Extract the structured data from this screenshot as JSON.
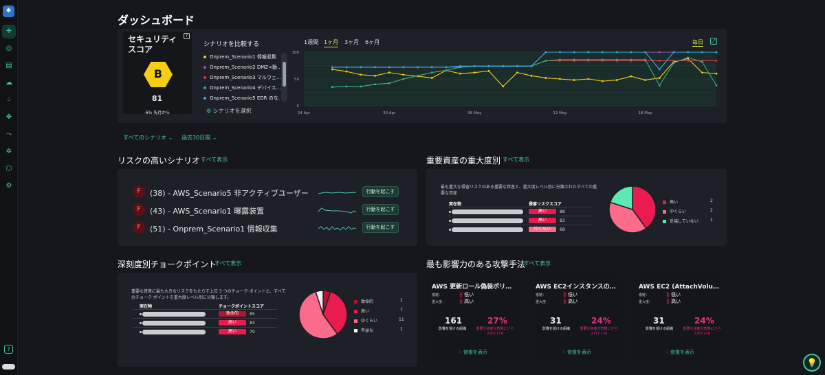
{
  "page_title": "ダッシュボード",
  "score": {
    "title": "セキュリティスコア",
    "grade": "B",
    "value": "81",
    "delta": "-6% 先月から"
  },
  "compare": {
    "title": "シナリオを比較する",
    "select_label": "シナリオを選択",
    "items": [
      {
        "label": "Onprem_Scenario1 情報収集",
        "color": "#f5cd15"
      },
      {
        "label": "Onprem_Scenario2 DMZ<動…",
        "color": "#a24dd6"
      },
      {
        "label": "Onprem_Scenario3 マルウェ…",
        "color": "#e8364f"
      },
      {
        "label": "Onprem_Scenario4 デバイス…",
        "color": "#2fb37d"
      },
      {
        "label": "Onprem_Scenario5 EDR のな…",
        "color": "#36a9f0"
      }
    ]
  },
  "chart_tabs": {
    "week": "1週間",
    "month": "1ヶ月",
    "three": "3ヶ月",
    "six": "6ヶ月",
    "daily": "毎日"
  },
  "chart_data": {
    "type": "line",
    "x": [
      "24 Apr",
      "25 Apr",
      "26 Apr",
      "27 Apr",
      "28 Apr",
      "29 Apr",
      "30 Apr",
      "1 May",
      "2 May",
      "3 May",
      "4 May",
      "5 May",
      "6 May",
      "7 May",
      "8 May",
      "9 May",
      "10 May",
      "11 May",
      "12 May",
      "13 May",
      "14 May",
      "15 May",
      "16 May",
      "17 May",
      "18 May",
      "19 May",
      "20 May",
      "21 May",
      "22 May",
      "23 May"
    ],
    "x_ticks": [
      "24 Apr",
      "30 Apr",
      "06 May",
      "12 May",
      "18 May"
    ],
    "y_ticks": [
      "0",
      "50",
      "100"
    ],
    "ylim": [
      0,
      100
    ],
    "series": [
      {
        "name": "Onprem_Scenario1 情報収集",
        "color": "#f5cd15",
        "values": [
          null,
          null,
          68,
          64,
          58,
          56,
          62,
          58,
          55,
          52,
          66,
          60,
          62,
          65,
          36,
          62,
          56,
          52,
          50,
          48,
          50,
          46,
          48,
          55,
          48,
          52,
          82,
          88,
          62,
          60
        ]
      },
      {
        "name": "Onprem_Scenario2 DMZ<動…",
        "color": "#a24dd6",
        "values": [
          null,
          null,
          72,
          72,
          72,
          72,
          72,
          72,
          72,
          72,
          72,
          72,
          74,
          74,
          74,
          74,
          74,
          100,
          100,
          100,
          100,
          100,
          100,
          100,
          100,
          100,
          100,
          100,
          100,
          100
        ]
      },
      {
        "name": "Onprem_Scenario3 マルウェ…",
        "color": "#e8364f",
        "values": [
          null,
          null,
          35,
          36,
          36,
          40,
          42,
          50,
          56,
          62,
          66,
          72,
          74,
          74,
          74,
          74,
          74,
          84,
          84,
          84,
          84,
          84,
          84,
          84,
          84,
          84,
          84,
          84,
          84,
          84
        ]
      },
      {
        "name": "Onprem_Scenario4 デバイス…",
        "color": "#2fb37d",
        "values": [
          null,
          null,
          35,
          36,
          36,
          40,
          42,
          50,
          56,
          62,
          66,
          72,
          74,
          74,
          74,
          74,
          74,
          84,
          86,
          86,
          86,
          86,
          86,
          86,
          86,
          38,
          80,
          90,
          82,
          38
        ]
      },
      {
        "name": "Onprem_Scenario5 EDR のな…",
        "color": "#36a9f0",
        "values": [
          null,
          null,
          72,
          72,
          72,
          72,
          72,
          72,
          72,
          72,
          72,
          74,
          74,
          74,
          74,
          74,
          74,
          100,
          100,
          100,
          100,
          100,
          100,
          100,
          100,
          68,
          100,
          100,
          100,
          100
        ]
      }
    ]
  },
  "filters": {
    "scenario": "すべてのシナリオ",
    "period": "過去30日間"
  },
  "risk": {
    "title": "リスクの高いシナリオ",
    "show_all": "すべて表示",
    "rows": [
      {
        "badge": "F",
        "text": "(38) - AWS_Scenario5 非アクティブユーザー",
        "action": "行動を起こす"
      },
      {
        "badge": "F",
        "text": "(43) - AWS_Scenario1 曝露装置",
        "action": "行動を起こす"
      },
      {
        "badge": "F",
        "text": "(51) - Onprem_Scenario1 情報収集",
        "action": "行動を起こす"
      }
    ]
  },
  "assets": {
    "title": "重要資産の重大度別",
    "show_all": "すべて表示",
    "desc": "最も重大な侵害リスクのある重要な資産と、重大度レベル別に分類されたすべての重要な資産",
    "col_entity": "実在物",
    "col_score": "侵害リスクスコア",
    "rows": [
      {
        "sev": "高い",
        "score": "88"
      },
      {
        "sev": "高い",
        "score": "83"
      },
      {
        "sev": "中くらい",
        "score": "68"
      }
    ],
    "legend": [
      {
        "label": "高い",
        "count": "2",
        "color": "#ea1b4e"
      },
      {
        "label": "中くらい",
        "count": "2",
        "color": "#fb6b8a"
      },
      {
        "label": "妥協していない",
        "count": "1",
        "color": "#5ee8b3"
      }
    ],
    "pie": [
      2,
      2,
      1
    ]
  },
  "choke": {
    "title": "深刻度別チョークポイント",
    "show_all": "すべて表示",
    "desc": "重要な資産に最も大きなリスクをもたらす上位 3 つのチョーク ポイントと、すべてのチョーク ポイントを重大度レベル別に分類します。",
    "col_entity": "実在物",
    "col_score": "チョークポイントスコア",
    "rows": [
      {
        "sev": "致命的",
        "score": "85"
      },
      {
        "sev": "高い",
        "score": "83"
      },
      {
        "sev": "高い",
        "score": "79"
      }
    ],
    "legend": [
      {
        "label": "致命的",
        "count": "1",
        "color": "#b51230"
      },
      {
        "label": "高い",
        "count": "7",
        "color": "#ea1b4e"
      },
      {
        "label": "中くらい",
        "count": "11",
        "color": "#fb6b8a"
      },
      {
        "label": "有益な",
        "count": "1",
        "color": "#f2f2f2"
      }
    ],
    "pie": [
      1,
      7,
      11,
      1
    ]
  },
  "attacks": {
    "title": "最も影響力のある攻撃手法",
    "show_all": "すべて表示",
    "label_ease": "複雑：",
    "label_sev": "重大度：",
    "affected": "影響を受ける組織",
    "pct_caption": "重要な資産が危険にさらされている",
    "link": "修復を表示",
    "cards": [
      {
        "title": "AWS 更新ロール偽装ポリシー",
        "ease": "低い",
        "sev": "高い",
        "count": "161",
        "pct": "27%"
      },
      {
        "title": "AWS EC2インスタンスのユー…",
        "ease": "低い",
        "sev": "高い",
        "count": "31",
        "pct": "24%"
      },
      {
        "title": "AWS EC2 (AttachVolume、D…",
        "ease": "低い",
        "sev": "高い",
        "count": "31",
        "pct": "24%"
      }
    ]
  }
}
